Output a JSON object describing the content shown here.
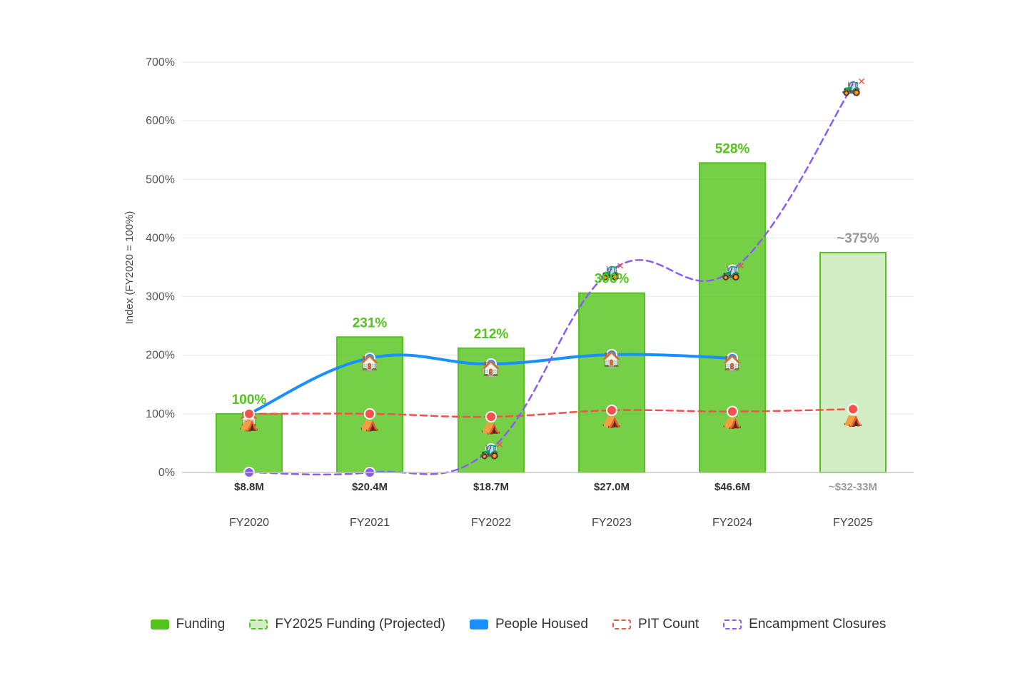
{
  "colors": {
    "funding": "#52c41a",
    "funding_projected_fill": "#d2edc4",
    "people_housed": "#1890ff",
    "pit_count": "#f5504a",
    "encampment_closures": "#8b5cf6",
    "grid": "#e6e6e6",
    "baseline": "#c8c8c8"
  },
  "icons": {
    "people_housed": "house-icon",
    "pit_count": "tent-icon",
    "encampment_closures": "bulldozer-icon"
  },
  "chart_data": {
    "type": "bar",
    "title": "",
    "ylabel": "Index (FY2020 = 100%)",
    "xlabel": "",
    "ylim": [
      0,
      700
    ],
    "yticks": [
      0,
      100,
      200,
      300,
      400,
      500,
      600,
      700
    ],
    "ytick_labels": [
      "0%",
      "100%",
      "200%",
      "300%",
      "400%",
      "500%",
      "600%",
      "700%"
    ],
    "grid": true,
    "legend_position": "bottom",
    "categories": [
      "FY2020",
      "FY2021",
      "FY2022",
      "FY2023",
      "FY2024",
      "FY2025"
    ],
    "funding_amounts": [
      "$8.8M",
      "$20.4M",
      "$18.7M",
      "$27.0M",
      "$46.6M",
      "~$32-33M"
    ],
    "series": [
      {
        "name": "Funding",
        "type": "bar",
        "values": [
          100,
          231,
          212,
          306,
          528,
          null
        ],
        "labels": [
          "100%",
          "231%",
          "212%",
          "306%",
          "528%",
          null
        ]
      },
      {
        "name": "FY2025 Funding (Projected)",
        "type": "bar",
        "values": [
          null,
          null,
          null,
          null,
          null,
          375
        ],
        "labels": [
          null,
          null,
          null,
          null,
          null,
          "~375%"
        ]
      },
      {
        "name": "People Housed",
        "type": "line",
        "values": [
          100,
          195,
          185,
          201,
          195,
          null
        ]
      },
      {
        "name": "PIT Count",
        "type": "line",
        "dashed": true,
        "values": [
          100,
          100,
          95,
          106,
          104,
          108
        ]
      },
      {
        "name": "Encampment Closures",
        "type": "line",
        "dashed": true,
        "values": [
          0,
          0,
          40,
          345,
          345,
          660
        ]
      }
    ]
  }
}
